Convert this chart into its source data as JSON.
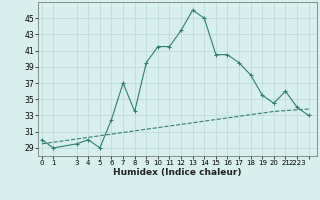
{
  "xlabel": "Humidex (Indice chaleur)",
  "x": [
    0,
    1,
    3,
    4,
    5,
    6,
    7,
    8,
    9,
    10,
    11,
    12,
    13,
    14,
    15,
    16,
    17,
    18,
    19,
    20,
    21,
    22,
    23
  ],
  "y_main": [
    30.0,
    29.0,
    29.5,
    30.0,
    29.0,
    32.5,
    37.0,
    33.5,
    39.5,
    41.5,
    41.5,
    43.5,
    46.0,
    45.0,
    40.5,
    40.5,
    39.5,
    38.0,
    35.5,
    34.5,
    36.0,
    34.0,
    33.0
  ],
  "y_line": [
    29.5,
    29.7,
    30.1,
    30.3,
    30.5,
    30.7,
    30.9,
    31.1,
    31.3,
    31.5,
    31.7,
    31.9,
    32.1,
    32.3,
    32.5,
    32.7,
    32.9,
    33.1,
    33.3,
    33.5,
    33.6,
    33.7,
    33.8
  ],
  "line_color": "#2d7f6e",
  "bg_color": "#d8f0ed",
  "grid_color": "#b8d8d4",
  "yticks": [
    29,
    31,
    33,
    35,
    37,
    39,
    41,
    43,
    45
  ],
  "xtick_labels": [
    "0",
    "1",
    "3",
    "4",
    "5",
    "6",
    "7",
    "8",
    "9",
    "10",
    "11",
    "12",
    "13",
    "14",
    "15",
    "16",
    "17",
    "18",
    "19",
    "20",
    "21",
    "2223"
  ],
  "xtick_positions": [
    0,
    1,
    3,
    4,
    5,
    6,
    7,
    8,
    9,
    10,
    11,
    12,
    13,
    14,
    15,
    16,
    17,
    18,
    19,
    20,
    21,
    22.5
  ],
  "ylim": [
    28.0,
    47.0
  ],
  "xlim": [
    -0.3,
    23.7
  ]
}
